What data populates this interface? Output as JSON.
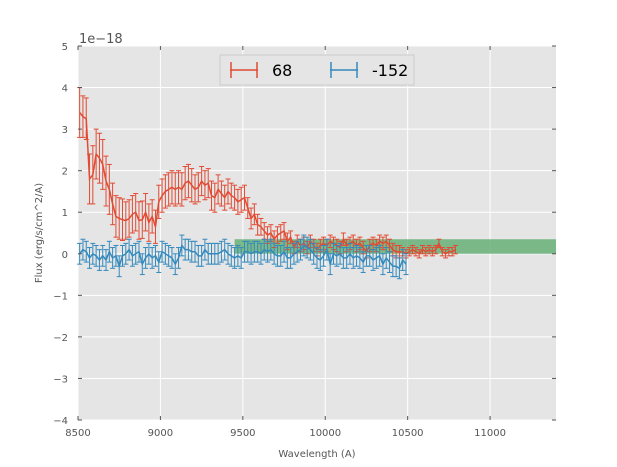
{
  "chart_data": {
    "type": "line",
    "xlabel": "Wavelength (A)",
    "ylabel": "Flux (erg/s/cm^2/A)",
    "offset_label": "1e−18",
    "xlim": [
      8500,
      11400
    ],
    "ylim": [
      -4,
      5
    ],
    "x_ticks": [
      8500,
      9000,
      9500,
      10000,
      10500,
      11000
    ],
    "x_tick_labels": [
      "8500",
      "9000",
      "9500",
      "10000",
      "10500",
      "11000"
    ],
    "y_ticks": [
      -4,
      -3,
      -2,
      -1,
      0,
      1,
      2,
      3,
      4,
      5
    ],
    "y_tick_labels": [
      "−4",
      "−3",
      "−2",
      "−1",
      "0",
      "1",
      "2",
      "3",
      "4",
      "5"
    ],
    "grid": true,
    "legend": "top-center",
    "band": {
      "x": [
        9450,
        11400
      ],
      "y": [
        0,
        0.35
      ],
      "color": "#55a868"
    },
    "series": [
      {
        "name": "68",
        "color": "#e24a33",
        "x_start": 8510,
        "x_step": 20,
        "values": [
          3.4,
          3.3,
          3.25,
          1.8,
          1.9,
          2.4,
          2.3,
          2.15,
          1.75,
          1.55,
          1.2,
          0.9,
          0.85,
          0.82,
          0.8,
          0.85,
          0.95,
          1.0,
          0.8,
          0.82,
          1.0,
          0.75,
          0.9,
          0.65,
          1.25,
          1.4,
          1.5,
          1.55,
          1.6,
          1.55,
          1.6,
          1.55,
          1.7,
          1.75,
          1.65,
          1.55,
          1.6,
          1.75,
          1.65,
          1.7,
          1.4,
          1.35,
          1.55,
          1.45,
          1.35,
          1.5,
          1.4,
          1.35,
          1.25,
          1.3,
          1.35,
          1.1,
          0.85,
          0.95,
          0.7,
          0.65,
          0.55,
          0.45,
          0.5,
          0.35,
          0.45,
          0.5,
          0.55,
          0.3,
          0.4,
          0.15,
          0.3,
          0.2,
          0.25,
          0.15,
          0.3,
          0.2,
          0.1,
          0.2,
          0.25,
          0.2,
          0.3,
          0.25,
          0.2,
          0.15,
          0.35,
          0.2,
          0.25,
          0.3,
          0.2,
          0.25,
          0.15,
          0.05,
          0.2,
          0.25,
          0.2,
          0.3,
          0.25,
          0.3,
          0.2,
          0.1,
          0.05,
          0.05,
          0.05,
          0.0,
          0.05,
          0.1,
          0.05,
          0.0,
          0.1,
          0.05,
          0.1,
          0.05,
          0.1,
          0.25,
          0.05,
          0.0,
          0.05,
          0.05,
          0.1
        ],
        "errors": [
          0.6,
          0.5,
          0.5,
          0.6,
          0.7,
          0.6,
          0.6,
          0.6,
          0.6,
          0.6,
          0.5,
          0.5,
          0.5,
          0.5,
          0.45,
          0.45,
          0.45,
          0.45,
          0.45,
          0.45,
          0.45,
          0.45,
          0.4,
          0.4,
          0.4,
          0.4,
          0.4,
          0.4,
          0.4,
          0.4,
          0.4,
          0.4,
          0.4,
          0.4,
          0.4,
          0.35,
          0.35,
          0.35,
          0.35,
          0.35,
          0.35,
          0.35,
          0.35,
          0.3,
          0.3,
          0.3,
          0.3,
          0.3,
          0.3,
          0.3,
          0.3,
          0.25,
          0.25,
          0.25,
          0.25,
          0.2,
          0.2,
          0.2,
          0.2,
          0.2,
          0.2,
          0.2,
          0.2,
          0.2,
          0.15,
          0.15,
          0.15,
          0.15,
          0.15,
          0.15,
          0.15,
          0.15,
          0.15,
          0.15,
          0.15,
          0.15,
          0.15,
          0.15,
          0.15,
          0.15,
          0.15,
          0.15,
          0.15,
          0.15,
          0.15,
          0.15,
          0.15,
          0.15,
          0.15,
          0.15,
          0.15,
          0.15,
          0.15,
          0.15,
          0.15,
          0.15,
          0.15,
          0.15,
          0.1,
          0.1,
          0.1,
          0.1,
          0.1,
          0.1,
          0.1,
          0.1,
          0.1,
          0.1,
          0.1,
          0.1,
          0.1,
          0.1,
          0.1,
          0.1,
          0.1
        ]
      },
      {
        "name": "-152",
        "color": "#348abd",
        "x_start": 8510,
        "x_step": 20,
        "values": [
          0.0,
          0.1,
          0.05,
          -0.1,
          0.0,
          -0.05,
          -0.15,
          -0.05,
          -0.15,
          0.05,
          -0.1,
          -0.05,
          -0.3,
          -0.05,
          0.0,
          0.1,
          -0.05,
          0.0,
          0.05,
          -0.25,
          -0.1,
          0.0,
          -0.1,
          -0.05,
          -0.2,
          0.05,
          0.0,
          -0.05,
          -0.1,
          -0.25,
          -0.1,
          0.2,
          0.1,
          0.1,
          0.05,
          0.05,
          -0.05,
          -0.05,
          0.1,
          0.0,
          0.0,
          0.0,
          0.0,
          0.05,
          0.1,
          0.0,
          -0.05,
          -0.1,
          -0.05,
          -0.1,
          0.05,
          0.05,
          0.0,
          0.05,
          0.05,
          0.0,
          0.1,
          0.05,
          0.1,
          0.0,
          -0.05,
          -0.05,
          0.05,
          -0.1,
          -0.1,
          0.0,
          0.05,
          0.1,
          0.2,
          0.15,
          0.1,
          0.0,
          -0.1,
          -0.15,
          -0.05,
          0.1,
          -0.25,
          0.0,
          -0.05,
          0.0,
          -0.1,
          -0.1,
          0.0,
          -0.1,
          -0.05,
          -0.1,
          -0.2,
          -0.05,
          -0.05,
          -0.15,
          -0.1,
          -0.05,
          -0.25,
          -0.1,
          -0.2,
          -0.3,
          -0.3,
          -0.35,
          -0.15,
          -0.25
        ]
      },
      {
        "name": "",
        "color": "#348abd",
        "x_start": 8510,
        "x_step": 20,
        "values": [],
        "note_index": 0
      }
    ]
  }
}
